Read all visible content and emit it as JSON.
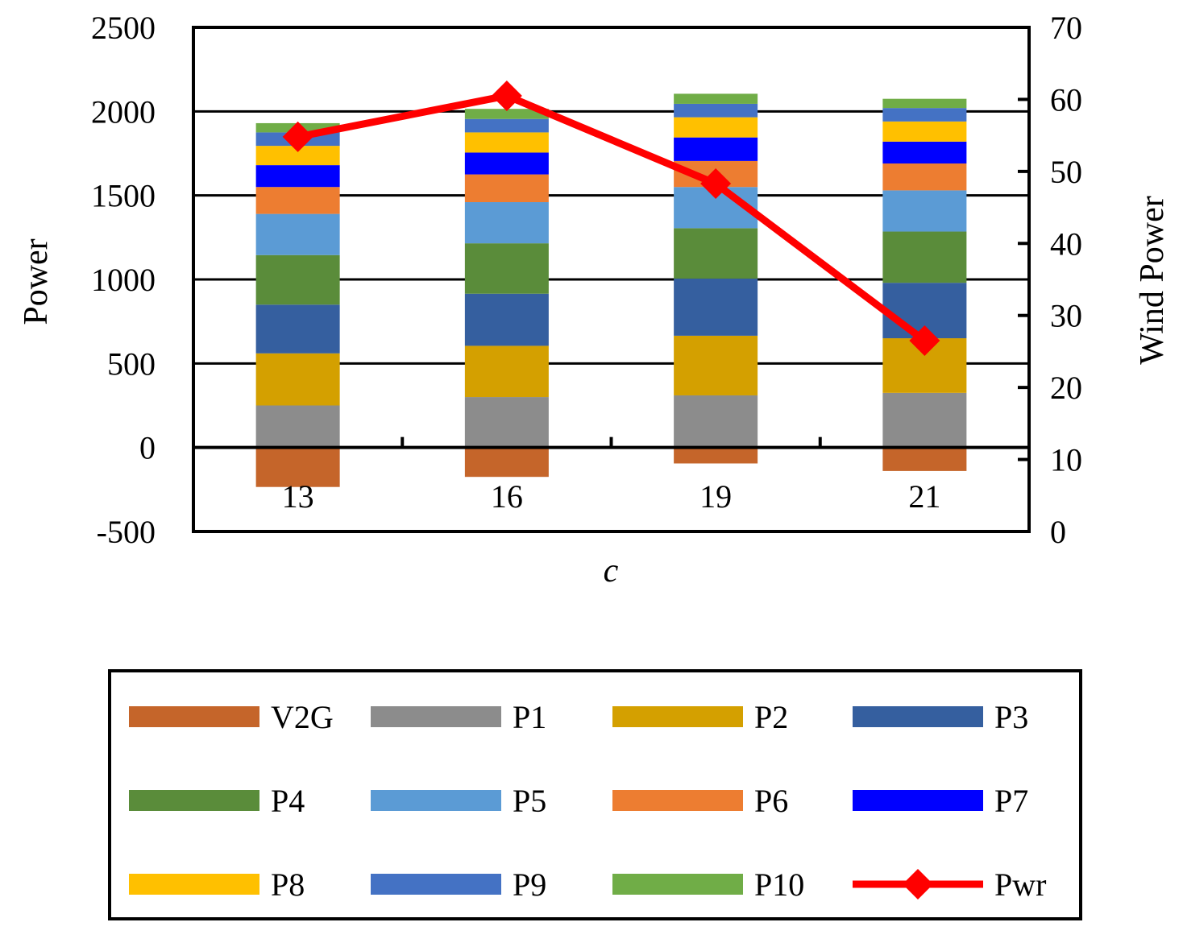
{
  "chart_data": {
    "type": "bar",
    "stacked": true,
    "categories": [
      "13",
      "16",
      "19",
      "21"
    ],
    "xlabel": "c",
    "ylabel": "Power",
    "y2label": "Wind Power",
    "ylim": [
      -500,
      2500
    ],
    "yticks": [
      -500,
      0,
      500,
      1000,
      1500,
      2000,
      2500
    ],
    "y2lim": [
      0,
      70
    ],
    "y2ticks": [
      0,
      10,
      20,
      30,
      40,
      50,
      60,
      70
    ],
    "grid": true,
    "legend_position": "bottom",
    "series": [
      {
        "name": "V2G",
        "color": "#c5652a",
        "values": [
          -235,
          -175,
          -95,
          -140
        ]
      },
      {
        "name": "P1",
        "color": "#8c8c8c",
        "values": [
          250,
          300,
          310,
          325
        ]
      },
      {
        "name": "P2",
        "color": "#d4a000",
        "values": [
          310,
          305,
          355,
          325
        ]
      },
      {
        "name": "P3",
        "color": "#355f9f",
        "values": [
          290,
          310,
          340,
          330
        ]
      },
      {
        "name": "P4",
        "color": "#5a8c3a",
        "values": [
          295,
          300,
          300,
          305
        ]
      },
      {
        "name": "P5",
        "color": "#5b9bd5",
        "values": [
          245,
          245,
          245,
          245
        ]
      },
      {
        "name": "P6",
        "color": "#ed7d31",
        "values": [
          160,
          165,
          155,
          160
        ]
      },
      {
        "name": "P7",
        "color": "#0000ff",
        "values": [
          130,
          130,
          140,
          130
        ]
      },
      {
        "name": "P8",
        "color": "#ffc000",
        "values": [
          115,
          120,
          120,
          120
        ]
      },
      {
        "name": "P9",
        "color": "#4472c4",
        "values": [
          80,
          80,
          80,
          80
        ]
      },
      {
        "name": "P10",
        "color": "#70ad47",
        "values": [
          55,
          60,
          60,
          55
        ]
      }
    ],
    "line_series": {
      "name": "Pwr",
      "color": "#ff0000",
      "axis": "right",
      "values": [
        54.8,
        60.5,
        48.3,
        26.5
      ]
    }
  }
}
